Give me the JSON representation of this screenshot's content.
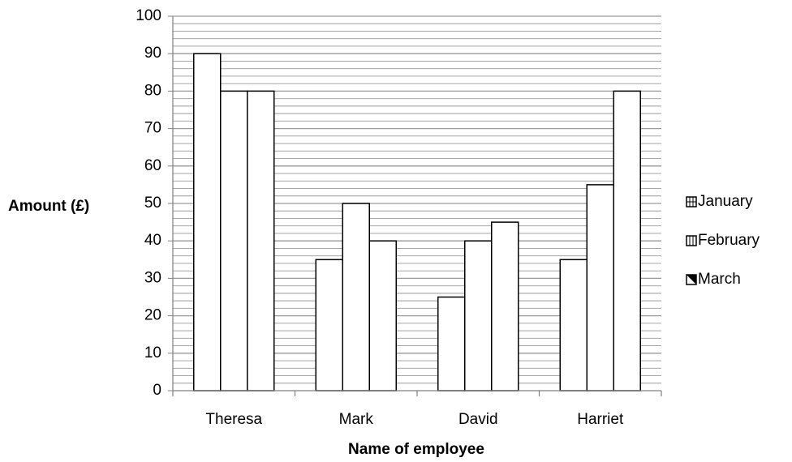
{
  "chart_data": {
    "type": "bar",
    "title": "",
    "xlabel": "Name of employee",
    "ylabel": "Amount (£)",
    "ylim": [
      0,
      100
    ],
    "yticks": [
      0,
      10,
      20,
      30,
      40,
      50,
      60,
      70,
      80,
      90,
      100
    ],
    "minor_grid_step": 2,
    "grid": true,
    "legend_position": "right",
    "categories": [
      "Theresa",
      "Mark",
      "David",
      "Harriet"
    ],
    "series": [
      {
        "name": "January",
        "values": [
          90,
          35,
          25,
          35
        ],
        "pattern": "grid-icon"
      },
      {
        "name": "February",
        "values": [
          80,
          50,
          40,
          55
        ],
        "pattern": "vertical-stripes-icon"
      },
      {
        "name": "March",
        "values": [
          80,
          40,
          45,
          80
        ],
        "pattern": "half-filled-square-icon"
      }
    ],
    "colors": {
      "bar_fill": "#ffffff",
      "bar_stroke": "#000000",
      "grid": "#9a9a9a",
      "axis": "#808080"
    }
  }
}
